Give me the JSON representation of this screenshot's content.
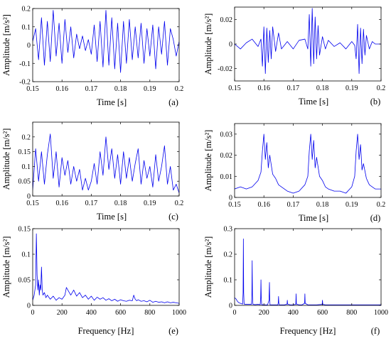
{
  "chart_data": [
    {
      "type": "line",
      "panel_label": "(a)",
      "xlabel": "Time [s]",
      "ylabel": "Amplitude [m/s²]",
      "xlim": [
        0.15,
        0.2
      ],
      "ylim": [
        -0.2,
        0.2
      ],
      "xticks": [
        0.15,
        0.16,
        0.17,
        0.18,
        0.19,
        0.2
      ],
      "xtick_labels": [
        "0.15",
        "0.16",
        "0.17",
        "0.18",
        "0.19",
        "0.2"
      ],
      "yticks": [
        -0.2,
        -0.1,
        0,
        0.1,
        0.2
      ],
      "ytick_labels": [
        "-0.2",
        "-0.1",
        "0",
        "0.1",
        "0.2"
      ],
      "series": [
        {
          "color": "#0000ee",
          "x": [
            0.15,
            0.151,
            0.152,
            0.153,
            0.154,
            0.155,
            0.156,
            0.157,
            0.158,
            0.159,
            0.16,
            0.161,
            0.162,
            0.163,
            0.164,
            0.165,
            0.166,
            0.167,
            0.168,
            0.169,
            0.17,
            0.171,
            0.172,
            0.173,
            0.174,
            0.175,
            0.176,
            0.177,
            0.178,
            0.179,
            0.18,
            0.181,
            0.182,
            0.183,
            0.184,
            0.185,
            0.186,
            0.187,
            0.188,
            0.189,
            0.19,
            0.191,
            0.192,
            0.193,
            0.194,
            0.195,
            0.196,
            0.197,
            0.198,
            0.199,
            0.2
          ],
          "y": [
            0.02,
            0.09,
            -0.08,
            0.15,
            -0.11,
            0.13,
            -0.09,
            0.19,
            -0.06,
            0.12,
            -0.1,
            0.14,
            -0.04,
            0.1,
            -0.07,
            0.06,
            -0.02,
            0.05,
            -0.03,
            0.03,
            -0.05,
            0.11,
            -0.09,
            0.13,
            -0.12,
            0.19,
            -0.11,
            0.15,
            -0.13,
            0.12,
            -0.15,
            0.13,
            -0.1,
            0.14,
            -0.08,
            0.1,
            -0.07,
            0.12,
            -0.1,
            0.09,
            -0.06,
            0.11,
            -0.13,
            0.1,
            -0.05,
            0.13,
            -0.11,
            0.09,
            0.03,
            -0.06,
            0.02
          ]
        }
      ]
    },
    {
      "type": "line",
      "panel_label": "(b)",
      "xlabel": "Time [s]",
      "ylabel": "Amplitude [m/s²]",
      "xlim": [
        0.15,
        0.2
      ],
      "ylim": [
        -0.03,
        0.03
      ],
      "xticks": [
        0.15,
        0.16,
        0.17,
        0.18,
        0.19,
        0.2
      ],
      "xtick_labels": [
        "0.15",
        "0.16",
        "0.17",
        "0.18",
        "0.19",
        "0.2"
      ],
      "yticks": [
        -0.02,
        0,
        0.02
      ],
      "ytick_labels": [
        "-0.02",
        "0",
        "0.02"
      ],
      "series": [
        {
          "color": "#0000ee",
          "x": [
            0.15,
            0.152,
            0.154,
            0.156,
            0.158,
            0.159,
            0.1595,
            0.16,
            0.1605,
            0.161,
            0.1615,
            0.162,
            0.1625,
            0.163,
            0.164,
            0.165,
            0.166,
            0.168,
            0.17,
            0.172,
            0.174,
            0.175,
            0.1755,
            0.176,
            0.1765,
            0.177,
            0.1775,
            0.178,
            0.1785,
            0.179,
            0.18,
            0.181,
            0.182,
            0.184,
            0.186,
            0.188,
            0.19,
            0.191,
            0.1915,
            0.192,
            0.1925,
            0.193,
            0.1935,
            0.194,
            0.1945,
            0.195,
            0.196,
            0.197,
            0.198,
            0.2
          ],
          "y": [
            0,
            -0.004,
            0.001,
            0.004,
            -0.002,
            0.004,
            -0.018,
            0.014,
            -0.024,
            0.013,
            -0.015,
            0.011,
            -0.012,
            0.014,
            -0.006,
            0.009,
            -0.004,
            0.002,
            -0.004,
            0.003,
            0.004,
            -0.004,
            0.024,
            -0.018,
            0.029,
            -0.016,
            0.022,
            -0.012,
            0.015,
            -0.009,
            0.006,
            -0.004,
            0.003,
            -0.002,
            0.001,
            -0.004,
            0.002,
            -0.001,
            -0.012,
            0.016,
            -0.024,
            0.013,
            -0.016,
            0.012,
            -0.009,
            0.007,
            -0.004,
            0.002,
            0,
            0
          ]
        }
      ]
    },
    {
      "type": "line",
      "panel_label": "(c)",
      "xlabel": "Time [s]",
      "ylabel": "Amplitude [m/s²]",
      "xlim": [
        0.15,
        0.2
      ],
      "ylim": [
        0,
        0.25
      ],
      "xticks": [
        0.15,
        0.16,
        0.17,
        0.18,
        0.19,
        0.2
      ],
      "xtick_labels": [
        "0.15",
        "0.16",
        "0.17",
        "0.18",
        "0.19",
        "0.2"
      ],
      "yticks": [
        0,
        0.05,
        0.1,
        0.15,
        0.2
      ],
      "ytick_labels": [
        "0",
        "0.05",
        "0.1",
        "0.15",
        "0.2"
      ],
      "series": [
        {
          "color": "#0000ee",
          "x": [
            0.15,
            0.151,
            0.152,
            0.153,
            0.154,
            0.155,
            0.156,
            0.157,
            0.158,
            0.159,
            0.16,
            0.161,
            0.162,
            0.163,
            0.164,
            0.165,
            0.166,
            0.167,
            0.168,
            0.169,
            0.17,
            0.171,
            0.172,
            0.173,
            0.174,
            0.175,
            0.176,
            0.177,
            0.178,
            0.179,
            0.18,
            0.181,
            0.182,
            0.183,
            0.184,
            0.185,
            0.186,
            0.187,
            0.188,
            0.189,
            0.19,
            0.191,
            0.192,
            0.193,
            0.194,
            0.195,
            0.196,
            0.197,
            0.198,
            0.199,
            0.2
          ],
          "y": [
            0.02,
            0.16,
            0.05,
            0.15,
            0.04,
            0.14,
            0.21,
            0.06,
            0.15,
            0.03,
            0.13,
            0.07,
            0.12,
            0.04,
            0.1,
            0.05,
            0.09,
            0.02,
            0.06,
            0.02,
            0.05,
            0.11,
            0.04,
            0.15,
            0.07,
            0.2,
            0.09,
            0.16,
            0.06,
            0.14,
            0.04,
            0.15,
            0.06,
            0.13,
            0.05,
            0.11,
            0.16,
            0.04,
            0.12,
            0.06,
            0.1,
            0.03,
            0.14,
            0.05,
            0.1,
            0.17,
            0.04,
            0.1,
            0.02,
            0.04,
            0.01
          ]
        }
      ]
    },
    {
      "type": "line",
      "panel_label": "(d)",
      "xlabel": "Time [s]",
      "ylabel": "Amplitude [m/s²]",
      "xlim": [
        0.15,
        0.2
      ],
      "ylim": [
        0,
        0.035
      ],
      "xticks": [
        0.15,
        0.16,
        0.17,
        0.18,
        0.19,
        0.2
      ],
      "xtick_labels": [
        "0.15",
        "0.16",
        "0.17",
        "0.18",
        "0.19",
        "0.2"
      ],
      "yticks": [
        0,
        0.01,
        0.02,
        0.03
      ],
      "ytick_labels": [
        "0",
        "0.01",
        "0.02",
        "0.03"
      ],
      "series": [
        {
          "color": "#0000ee",
          "x": [
            0.15,
            0.152,
            0.154,
            0.156,
            0.158,
            0.159,
            0.1595,
            0.16,
            0.1605,
            0.161,
            0.1615,
            0.162,
            0.163,
            0.164,
            0.165,
            0.166,
            0.168,
            0.17,
            0.172,
            0.174,
            0.175,
            0.1755,
            0.176,
            0.1765,
            0.177,
            0.1775,
            0.178,
            0.179,
            0.18,
            0.181,
            0.182,
            0.184,
            0.186,
            0.188,
            0.19,
            0.191,
            0.1915,
            0.192,
            0.1925,
            0.193,
            0.1935,
            0.194,
            0.195,
            0.196,
            0.197,
            0.198,
            0.2
          ],
          "y": [
            0.004,
            0.005,
            0.004,
            0.005,
            0.008,
            0.012,
            0.022,
            0.03,
            0.018,
            0.026,
            0.014,
            0.02,
            0.011,
            0.009,
            0.006,
            0.005,
            0.003,
            0.002,
            0.003,
            0.006,
            0.01,
            0.022,
            0.03,
            0.018,
            0.027,
            0.014,
            0.019,
            0.01,
            0.008,
            0.005,
            0.004,
            0.003,
            0.003,
            0.002,
            0.005,
            0.01,
            0.022,
            0.03,
            0.018,
            0.025,
            0.013,
            0.016,
            0.009,
            0.006,
            0.005,
            0.004,
            0.004
          ]
        }
      ]
    },
    {
      "type": "line",
      "panel_label": "(e)",
      "xlabel": "Frequency [Hz]",
      "ylabel": "Amplitude [m/s²]",
      "xlim": [
        0,
        1000
      ],
      "ylim": [
        0,
        0.15
      ],
      "xticks": [
        0,
        200,
        400,
        600,
        800,
        1000
      ],
      "xtick_labels": [
        "0",
        "200",
        "400",
        "600",
        "800",
        "1000"
      ],
      "yticks": [
        0,
        0.05,
        0.1,
        0.15
      ],
      "ytick_labels": [
        "0",
        "0.05",
        "0.1",
        "0.15"
      ],
      "series": [
        {
          "color": "#0000ee",
          "x": [
            0,
            10,
            20,
            25,
            30,
            35,
            40,
            45,
            50,
            55,
            60,
            65,
            70,
            80,
            90,
            100,
            120,
            140,
            160,
            180,
            200,
            220,
            230,
            240,
            260,
            280,
            300,
            320,
            340,
            360,
            380,
            400,
            420,
            440,
            460,
            480,
            500,
            520,
            540,
            560,
            580,
            600,
            620,
            640,
            660,
            680,
            690,
            700,
            710,
            720,
            740,
            760,
            780,
            800,
            820,
            840,
            860,
            880,
            900,
            920,
            940,
            960,
            980,
            1000
          ],
          "y": [
            0.01,
            0.02,
            0.04,
            0.14,
            0.06,
            0.03,
            0.05,
            0.02,
            0.04,
            0.03,
            0.075,
            0.03,
            0.02,
            0.025,
            0.015,
            0.02,
            0.012,
            0.018,
            0.01,
            0.015,
            0.012,
            0.02,
            0.035,
            0.03,
            0.02,
            0.03,
            0.018,
            0.025,
            0.015,
            0.02,
            0.012,
            0.018,
            0.01,
            0.016,
            0.012,
            0.015,
            0.01,
            0.013,
            0.009,
            0.012,
            0.008,
            0.011,
            0.009,
            0.008,
            0.01,
            0.009,
            0.02,
            0.012,
            0.009,
            0.011,
            0.008,
            0.009,
            0.007,
            0.01,
            0.006,
            0.008,
            0.006,
            0.007,
            0.005,
            0.007,
            0.005,
            0.006,
            0.005,
            0.004
          ]
        }
      ]
    },
    {
      "type": "line",
      "panel_label": "(f)",
      "xlabel": "Frequency [Hz]",
      "ylabel": "Amplitude [m/s²]",
      "xlim": [
        0,
        1000
      ],
      "ylim": [
        0,
        0.3
      ],
      "xticks": [
        0,
        200,
        400,
        600,
        800,
        1000
      ],
      "xtick_labels": [
        "0",
        "200",
        "400",
        "600",
        "800",
        "1000"
      ],
      "yticks": [
        0,
        0.1,
        0.2,
        0.3
      ],
      "ytick_labels": [
        "0",
        "0.1",
        "0.2",
        "0.3"
      ],
      "series": [
        {
          "color": "#0000ee",
          "x": [
            0,
            10,
            20,
            30,
            40,
            55,
            58,
            60,
            62,
            65,
            80,
            100,
            115,
            118,
            120,
            122,
            125,
            140,
            160,
            175,
            178,
            180,
            182,
            185,
            200,
            225,
            235,
            238,
            240,
            242,
            245,
            260,
            280,
            295,
            298,
            300,
            302,
            305,
            320,
            340,
            358,
            360,
            362,
            380,
            400,
            418,
            420,
            422,
            440,
            460,
            478,
            480,
            482,
            500,
            520,
            540,
            560,
            598,
            600,
            602,
            620,
            640,
            660,
            700,
            720,
            740,
            780,
            800,
            840,
            860,
            900,
            940,
            960,
            1000
          ],
          "y": [
            0.03,
            0.025,
            0.015,
            0.01,
            0.008,
            0.005,
            0.05,
            0.26,
            0.05,
            0.005,
            0.004,
            0.004,
            0.004,
            0.04,
            0.175,
            0.04,
            0.004,
            0.003,
            0.004,
            0.003,
            0.03,
            0.1,
            0.03,
            0.003,
            0.002,
            0.002,
            0.02,
            0.09,
            0.02,
            0.002,
            0.002,
            0.002,
            0.002,
            0.002,
            0.01,
            0.035,
            0.01,
            0.002,
            0.002,
            0.002,
            0.005,
            0.02,
            0.005,
            0.002,
            0.002,
            0.005,
            0.045,
            0.005,
            0.002,
            0.002,
            0.008,
            0.045,
            0.008,
            0.002,
            0.002,
            0.002,
            0.002,
            0.004,
            0.02,
            0.004,
            0.002,
            0.002,
            0.002,
            0.002,
            0.002,
            0.002,
            0.002,
            0.002,
            0.002,
            0.002,
            0.002,
            0.002,
            0.002,
            0.002
          ]
        }
      ]
    }
  ]
}
